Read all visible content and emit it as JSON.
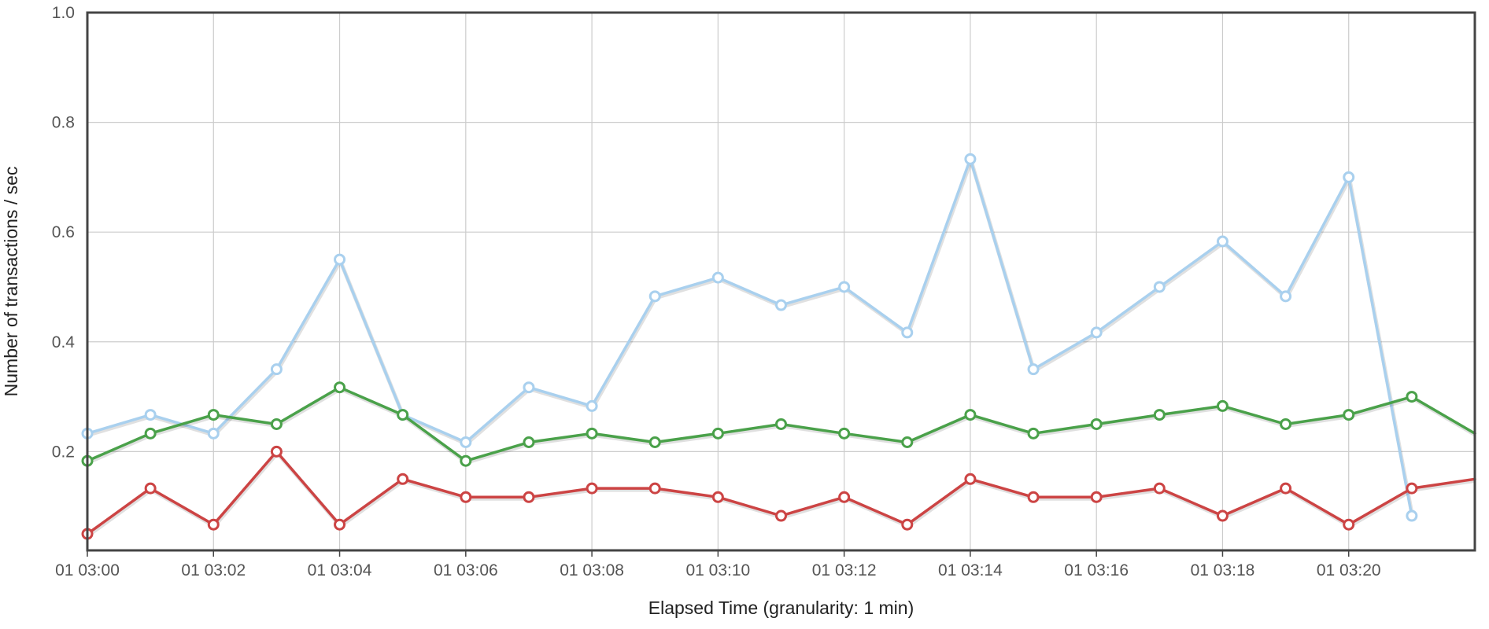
{
  "chart_data": {
    "type": "line",
    "title": "",
    "xlabel": "Elapsed Time (granularity: 1 min)",
    "ylabel": "Number of transactions / sec",
    "x": [
      "01 03:00",
      "01 03:01",
      "01 03:02",
      "01 03:03",
      "01 03:04",
      "01 03:05",
      "01 03:06",
      "01 03:07",
      "01 03:08",
      "01 03:09",
      "01 03:10",
      "01 03:11",
      "01 03:12",
      "01 03:13",
      "01 03:14",
      "01 03:15",
      "01 03:16",
      "01 03:17",
      "01 03:18",
      "01 03:19",
      "01 03:20",
      "01 03:21",
      "01 03:22"
    ],
    "x_tick_labels": [
      "01 03:00",
      "01 03:02",
      "01 03:04",
      "01 03:06",
      "01 03:08",
      "01 03:10",
      "01 03:12",
      "01 03:14",
      "01 03:16",
      "01 03:18",
      "01 03:20"
    ],
    "y_tick_labels": [
      "0.2",
      "0.4",
      "0.6",
      "0.8",
      "1.0"
    ],
    "ylim": [
      0.02,
      1.0
    ],
    "xlim": [
      "01 03:00",
      "01 03:22"
    ],
    "grid": true,
    "legend": "none",
    "series": [
      {
        "color": "#a9d0ee",
        "markers": [
          true,
          true,
          true,
          true,
          true,
          true,
          true,
          true,
          true,
          true,
          true,
          true,
          true,
          true,
          true,
          true,
          true,
          true,
          true,
          true,
          true,
          true,
          false
        ],
        "values": [
          0.233,
          0.267,
          0.233,
          0.35,
          0.55,
          0.267,
          0.217,
          0.317,
          0.283,
          0.483,
          0.517,
          0.467,
          0.5,
          0.417,
          0.733,
          0.35,
          0.417,
          0.5,
          0.583,
          0.483,
          0.7,
          0.083,
          null
        ]
      },
      {
        "color": "#4aa14a",
        "markers": [
          true,
          true,
          true,
          true,
          true,
          true,
          true,
          true,
          true,
          true,
          true,
          true,
          true,
          true,
          true,
          true,
          true,
          true,
          true,
          true,
          true,
          true,
          false
        ],
        "values": [
          0.183,
          0.233,
          0.267,
          0.25,
          0.317,
          0.267,
          0.183,
          0.217,
          0.233,
          0.217,
          0.233,
          0.25,
          0.233,
          0.217,
          0.267,
          0.233,
          0.25,
          0.267,
          0.283,
          0.25,
          0.267,
          0.3,
          0.233
        ]
      },
      {
        "color": "#cc4444",
        "markers": [
          true,
          true,
          true,
          true,
          true,
          true,
          true,
          true,
          true,
          true,
          true,
          true,
          true,
          true,
          true,
          true,
          true,
          true,
          true,
          true,
          true,
          true,
          false
        ],
        "values": [
          0.05,
          0.133,
          0.067,
          0.2,
          0.067,
          0.15,
          0.117,
          0.117,
          0.133,
          0.133,
          0.117,
          0.083,
          0.117,
          0.067,
          0.15,
          0.117,
          0.117,
          0.133,
          0.083,
          0.133,
          0.067,
          0.133,
          0.15
        ]
      }
    ]
  }
}
